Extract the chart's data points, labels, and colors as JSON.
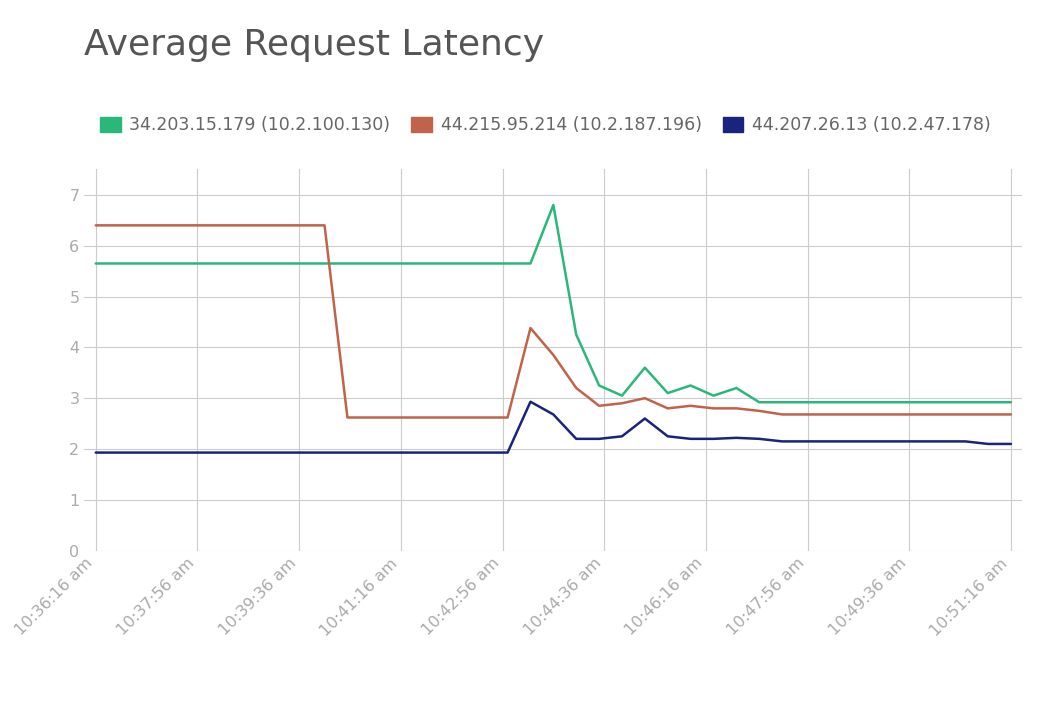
{
  "title": "Average Request Latency",
  "title_fontsize": 26,
  "title_color": "#555555",
  "background_color": "#ffffff",
  "grid_color": "#cccccc",
  "series": [
    {
      "label": "34.203.15.179 (10.2.100.130)",
      "color": "#2ab87a",
      "linewidth": 1.8,
      "y": [
        5.65,
        5.65,
        5.65,
        5.65,
        5.65,
        5.65,
        5.65,
        5.65,
        5.65,
        5.65,
        5.65,
        5.65,
        5.65,
        5.65,
        5.65,
        5.65,
        5.65,
        5.65,
        5.65,
        5.65,
        6.8,
        4.25,
        3.25,
        3.05,
        3.6,
        3.1,
        3.25,
        3.05,
        3.2,
        2.92,
        2.92,
        2.92,
        2.92,
        2.92,
        2.92,
        2.92,
        2.92,
        2.92,
        2.92,
        2.92,
        2.92
      ]
    },
    {
      "label": "44.215.95.214 (10.2.187.196)",
      "color": "#c0634a",
      "linewidth": 1.8,
      "y": [
        6.4,
        6.4,
        6.4,
        6.4,
        6.4,
        6.4,
        6.4,
        6.4,
        6.4,
        6.4,
        6.4,
        2.62,
        2.62,
        2.62,
        2.62,
        2.62,
        2.62,
        2.62,
        2.62,
        4.38,
        3.85,
        3.2,
        2.85,
        2.9,
        3.0,
        2.8,
        2.85,
        2.8,
        2.8,
        2.75,
        2.68,
        2.68,
        2.68,
        2.68,
        2.68,
        2.68,
        2.68,
        2.68,
        2.68,
        2.68,
        2.68
      ]
    },
    {
      "label": "44.207.26.13 (10.2.47.178)",
      "color": "#1a237e",
      "linewidth": 1.8,
      "y": [
        1.93,
        1.93,
        1.93,
        1.93,
        1.93,
        1.93,
        1.93,
        1.93,
        1.93,
        1.93,
        1.93,
        1.93,
        1.93,
        1.93,
        1.93,
        1.93,
        1.93,
        1.93,
        1.93,
        2.93,
        2.68,
        2.2,
        2.2,
        2.25,
        2.6,
        2.25,
        2.2,
        2.2,
        2.22,
        2.2,
        2.15,
        2.15,
        2.15,
        2.15,
        2.15,
        2.15,
        2.15,
        2.15,
        2.15,
        2.1,
        2.1
      ]
    }
  ],
  "xtick_labels": [
    "10:36:16 am",
    "10:37:56 am",
    "10:39:36 am",
    "10:41:16 am",
    "10:42:56 am",
    "10:44:36 am",
    "10:46:16 am",
    "10:47:56 am",
    "10:49:36 am",
    "10:51:16 am"
  ],
  "xtick_positions": [
    0,
    4.44,
    8.89,
    13.33,
    17.78,
    22.22,
    26.67,
    31.11,
    35.56,
    40.0
  ],
  "ytick_labels": [
    "0",
    "1",
    "2",
    "3",
    "4",
    "5",
    "6",
    "7"
  ],
  "ylim": [
    0,
    7.5
  ],
  "xlim": [
    -0.5,
    40.5
  ],
  "tick_color": "#aaaaaa",
  "tick_fontsize": 11.5,
  "legend_fontsize": 12.5,
  "legend_color": "#666666"
}
